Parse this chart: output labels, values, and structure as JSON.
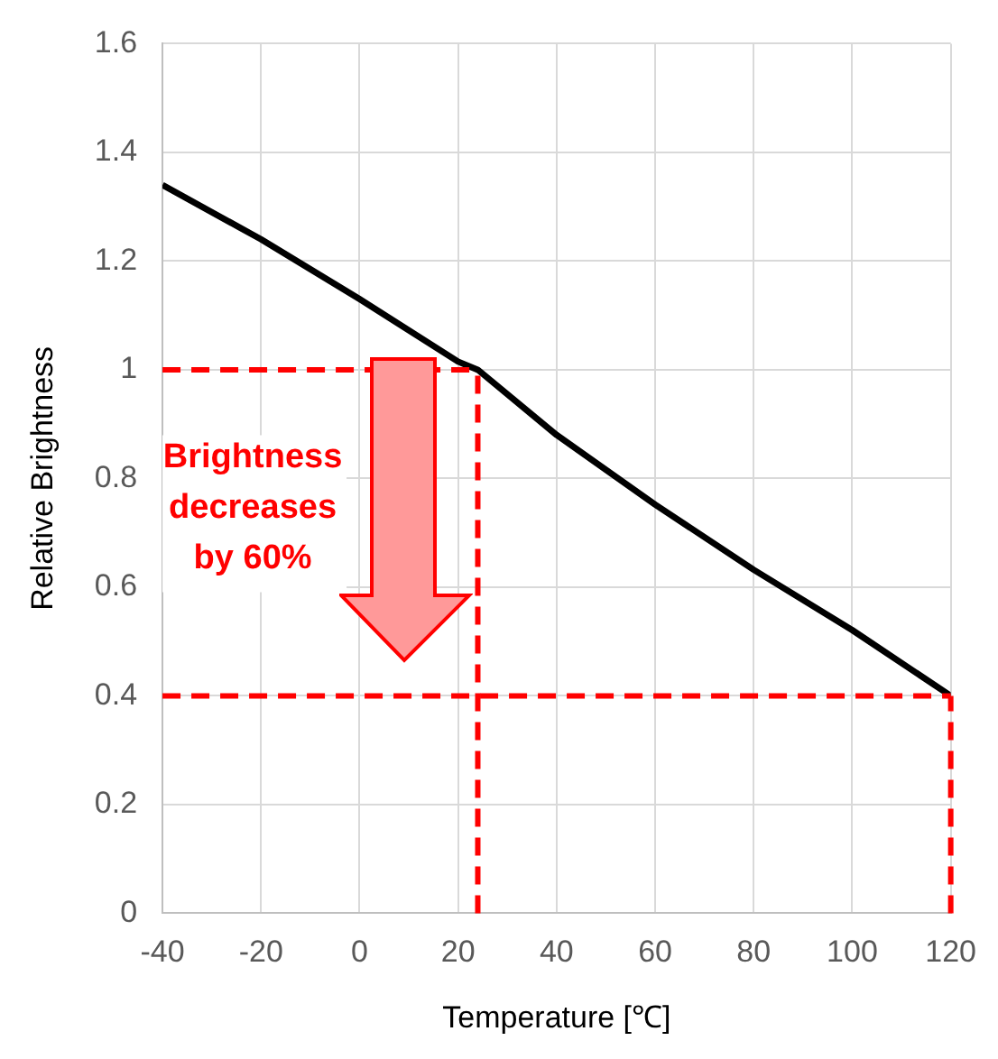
{
  "chart_data": {
    "type": "line",
    "xlabel": "Temperature [℃]",
    "ylabel": "Relative Brightness",
    "x": [
      -40,
      -20,
      0,
      20,
      24,
      40,
      60,
      80,
      100,
      120
    ],
    "series": [
      {
        "color": "#000000",
        "values": [
          1.34,
          1.24,
          1.13,
          1.015,
          1.0,
          0.88,
          0.752,
          0.632,
          0.521,
          0.4
        ]
      }
    ],
    "xlim": [
      -40,
      120
    ],
    "xticks": [
      -40,
      -20,
      0,
      20,
      40,
      60,
      80,
      100,
      120
    ],
    "ylim": [
      0,
      1.6
    ],
    "yticks": [
      0,
      0.2,
      0.4,
      0.6,
      0.8,
      1,
      1.2,
      1.4,
      1.6
    ],
    "grid": true,
    "legend": false,
    "marker": "none",
    "line_style": "solid",
    "ref_lines": [
      {
        "axis": "y",
        "value": 1,
        "color": "#ff0000",
        "line_style": "dashed"
      },
      {
        "axis": "x",
        "value": 24,
        "color": "#ff0000",
        "line_style": "dashed"
      },
      {
        "axis": "y",
        "value": 0.4,
        "color": "#ff0000",
        "line_style": "dashed"
      },
      {
        "axis": "x",
        "value": 120,
        "color": "#ff0000",
        "line_style": "dashed"
      }
    ],
    "annotations": [
      "Brightness\ndecreases\nby 60%"
    ]
  }
}
